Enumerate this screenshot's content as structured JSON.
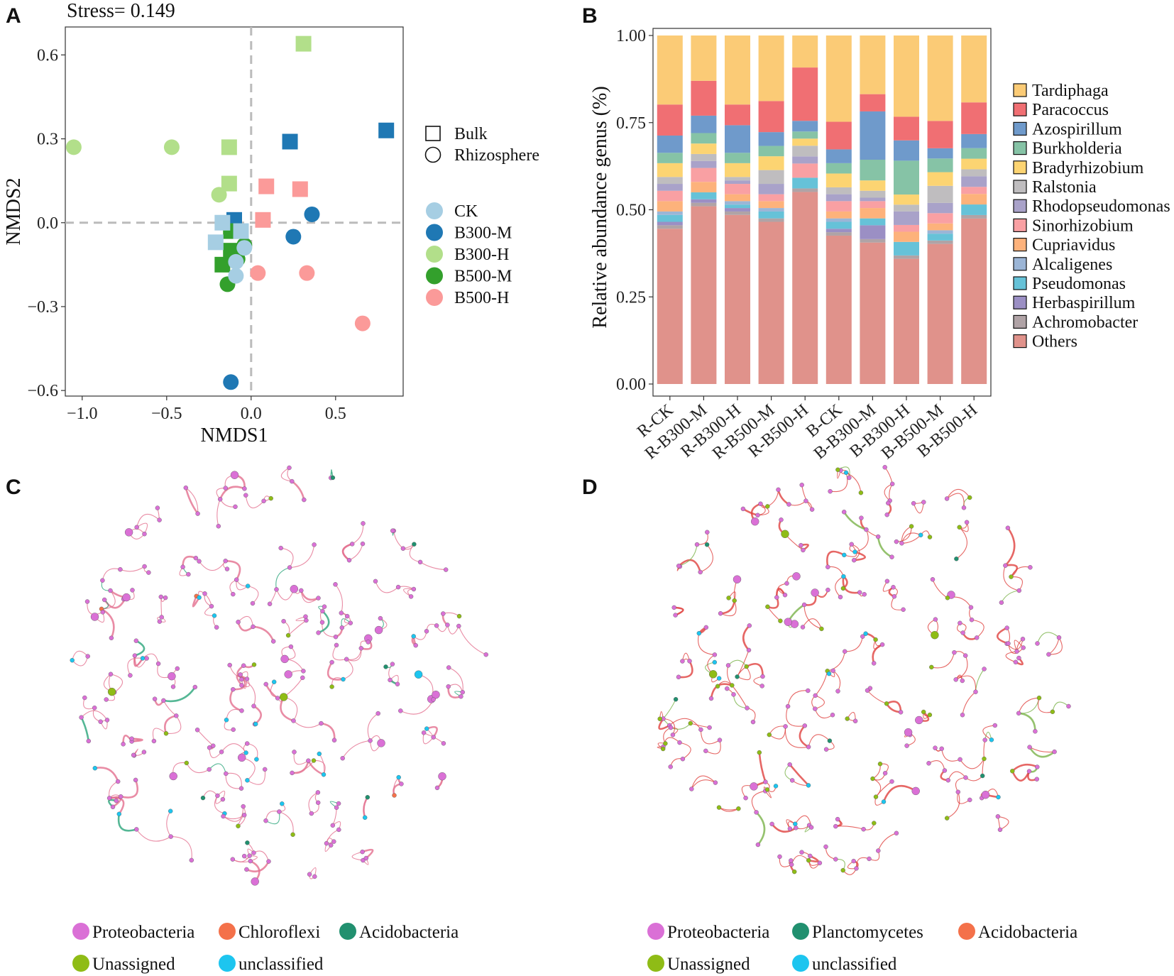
{
  "panels": {
    "a": "A",
    "b": "B",
    "c": "C",
    "d": "D"
  },
  "chart_data": [
    {
      "type": "scatter",
      "panel": "A",
      "title": "Stress= 0.149",
      "xlabel": "NMDS1",
      "ylabel": "NMDS2",
      "xlim": [
        -1.1,
        0.9
      ],
      "ylim": [
        -0.62,
        0.7
      ],
      "xticks": [
        -1.0,
        -0.5,
        0.0,
        0.5
      ],
      "xtick_labels": [
        "−1.0",
        "−0.5",
        "0.0",
        "0.5"
      ],
      "yticks": [
        0.6,
        0.3,
        0.0,
        -0.3,
        -0.6
      ],
      "ytick_labels": [
        "0.6",
        "0.3",
        "0.0",
        "−0.3",
        "−0.6"
      ],
      "shape_legend": [
        {
          "label": "Bulk",
          "shape": "square"
        },
        {
          "label": "Rhizosphere",
          "shape": "circle"
        }
      ],
      "groups": [
        {
          "name": "CK",
          "color": "#a6cee3"
        },
        {
          "name": "B300-M",
          "color": "#1f78b4"
        },
        {
          "name": "B300-H",
          "color": "#b2df8a"
        },
        {
          "name": "B500-M",
          "color": "#33a02c"
        },
        {
          "name": "B500-H",
          "color": "#fb9a99"
        }
      ],
      "points": [
        {
          "group": "B300-H",
          "shape": "square",
          "x": 0.31,
          "y": 0.64
        },
        {
          "group": "B300-H",
          "shape": "square",
          "x": -0.13,
          "y": 0.27
        },
        {
          "group": "B300-H",
          "shape": "square",
          "x": -0.13,
          "y": 0.14
        },
        {
          "group": "B300-H",
          "shape": "circle",
          "x": -1.05,
          "y": 0.27
        },
        {
          "group": "B300-H",
          "shape": "circle",
          "x": -0.47,
          "y": 0.27
        },
        {
          "group": "B300-H",
          "shape": "circle",
          "x": -0.19,
          "y": 0.1
        },
        {
          "group": "B300-M",
          "shape": "square",
          "x": 0.23,
          "y": 0.29
        },
        {
          "group": "B300-M",
          "shape": "square",
          "x": 0.8,
          "y": 0.33
        },
        {
          "group": "B300-M",
          "shape": "square",
          "x": -0.1,
          "y": 0.01
        },
        {
          "group": "B300-M",
          "shape": "circle",
          "x": 0.36,
          "y": 0.03
        },
        {
          "group": "B300-M",
          "shape": "circle",
          "x": 0.25,
          "y": -0.05
        },
        {
          "group": "B300-M",
          "shape": "circle",
          "x": -0.12,
          "y": -0.57
        },
        {
          "group": "B500-H",
          "shape": "square",
          "x": 0.09,
          "y": 0.13
        },
        {
          "group": "B500-H",
          "shape": "square",
          "x": 0.29,
          "y": 0.12
        },
        {
          "group": "B500-H",
          "shape": "square",
          "x": 0.07,
          "y": 0.01
        },
        {
          "group": "B500-H",
          "shape": "circle",
          "x": 0.04,
          "y": -0.18
        },
        {
          "group": "B500-H",
          "shape": "circle",
          "x": 0.33,
          "y": -0.18
        },
        {
          "group": "B500-H",
          "shape": "circle",
          "x": 0.66,
          "y": -0.36
        },
        {
          "group": "B500-M",
          "shape": "square",
          "x": -0.12,
          "y": -0.03
        },
        {
          "group": "B500-M",
          "shape": "square",
          "x": -0.12,
          "y": -0.1
        },
        {
          "group": "B500-M",
          "shape": "square",
          "x": -0.17,
          "y": -0.15
        },
        {
          "group": "B500-M",
          "shape": "circle",
          "x": -0.14,
          "y": -0.22
        },
        {
          "group": "B500-M",
          "shape": "circle",
          "x": -0.04,
          "y": -0.08
        },
        {
          "group": "B500-M",
          "shape": "circle",
          "x": -0.08,
          "y": -0.13
        },
        {
          "group": "CK",
          "shape": "square",
          "x": -0.17,
          "y": 0.0
        },
        {
          "group": "CK",
          "shape": "square",
          "x": -0.21,
          "y": -0.07
        },
        {
          "group": "CK",
          "shape": "square",
          "x": -0.06,
          "y": -0.03
        },
        {
          "group": "CK",
          "shape": "circle",
          "x": -0.04,
          "y": -0.09
        },
        {
          "group": "CK",
          "shape": "circle",
          "x": -0.09,
          "y": -0.14
        },
        {
          "group": "CK",
          "shape": "circle",
          "x": -0.09,
          "y": -0.19
        }
      ]
    },
    {
      "type": "bar",
      "stacked": true,
      "panel": "B",
      "ylabel": "Relative abundance genus (%)",
      "ylim": [
        0,
        1
      ],
      "yticks": [
        0.0,
        0.25,
        0.5,
        0.75,
        1.0
      ],
      "ytick_labels": [
        "0.00",
        "0.25",
        "0.50",
        "0.75",
        "1.00"
      ],
      "categories": [
        "R-CK",
        "R-B300-M",
        "R-B300-H",
        "R-B500-M",
        "R-B500-H",
        "B-CK",
        "B-B300-M",
        "B-B300-H",
        "B-B500-M",
        "B-B500-H"
      ],
      "series": [
        {
          "name": "Others",
          "color": "#e0928b",
          "values": [
            0.45,
            0.51,
            0.49,
            0.47,
            0.54,
            0.43,
            0.41,
            0.37,
            0.41,
            0.47
          ]
        },
        {
          "name": "Achromobacter",
          "color": "#b0a3a6",
          "values": [
            0.01,
            0.01,
            0.01,
            0.01,
            0.01,
            0.01,
            0.01,
            0.01,
            0.01,
            0.01
          ]
        },
        {
          "name": "Herbaspirillum",
          "color": "#9b8fc4",
          "values": [
            0.01,
            0.01,
            0.01,
            0.0,
            0.0,
            0.01,
            0.04,
            0.0,
            0.0,
            0.0
          ]
        },
        {
          "name": "Pseudomonas",
          "color": "#66c2d8",
          "values": [
            0.02,
            0.02,
            0.01,
            0.02,
            0.03,
            0.02,
            0.02,
            0.04,
            0.02,
            0.03
          ]
        },
        {
          "name": "Alcaligenes",
          "color": "#9bb5d6",
          "values": [
            0.01,
            0.0,
            0.01,
            0.01,
            0.0,
            0.01,
            0.0,
            0.0,
            0.01,
            0.0
          ]
        },
        {
          "name": "Cupriavidus",
          "color": "#fdb27b",
          "values": [
            0.03,
            0.03,
            0.02,
            0.02,
            0.0,
            0.02,
            0.03,
            0.03,
            0.02,
            0.03
          ]
        },
        {
          "name": "Sinorhizobium",
          "color": "#f9a0a3",
          "values": [
            0.03,
            0.04,
            0.03,
            0.02,
            0.04,
            0.03,
            0.02,
            0.02,
            0.03,
            0.02
          ]
        },
        {
          "name": "Rhodopseudomonas",
          "color": "#a9a2c9",
          "values": [
            0.02,
            0.02,
            0.01,
            0.03,
            0.02,
            0.02,
            0.01,
            0.04,
            0.03,
            0.03
          ]
        },
        {
          "name": "Ralstonia",
          "color": "#bfbdbf",
          "values": [
            0.02,
            0.02,
            0.01,
            0.04,
            0.03,
            0.02,
            0.02,
            0.02,
            0.05,
            0.02
          ]
        },
        {
          "name": "Bradyrhizobium",
          "color": "#fcd472",
          "values": [
            0.04,
            0.03,
            0.04,
            0.04,
            0.02,
            0.04,
            0.03,
            0.03,
            0.04,
            0.03
          ]
        },
        {
          "name": "Burkholderia",
          "color": "#86c3a6",
          "values": [
            0.03,
            0.03,
            0.03,
            0.03,
            0.02,
            0.03,
            0.06,
            0.1,
            0.04,
            0.03
          ]
        },
        {
          "name": "Azospirillum",
          "color": "#6f9acb",
          "values": [
            0.05,
            0.05,
            0.08,
            0.04,
            0.03,
            0.04,
            0.14,
            0.06,
            0.03,
            0.04
          ]
        },
        {
          "name": "Paracoccus",
          "color": "#f06f73",
          "values": [
            0.09,
            0.1,
            0.06,
            0.09,
            0.15,
            0.08,
            0.05,
            0.07,
            0.08,
            0.09
          ]
        },
        {
          "name": "Tardiphaga",
          "color": "#fbcb76",
          "values": [
            0.2,
            0.13,
            0.2,
            0.19,
            0.09,
            0.25,
            0.17,
            0.24,
            0.25,
            0.19
          ]
        }
      ],
      "legend_order": [
        "Tardiphaga",
        "Paracoccus",
        "Azospirillum",
        "Burkholderia",
        "Bradyrhizobium",
        "Ralstonia",
        "Rhodopseudomonas",
        "Sinorhizobium",
        "Cupriavidus",
        "Alcaligenes",
        "Pseudomonas",
        "Herbaspirillum",
        "Achromobacter",
        "Others"
      ]
    }
  ],
  "networks": {
    "C": {
      "legend": [
        {
          "label": "Proteobacteria",
          "color": "#da70d6"
        },
        {
          "label": "Chloroflexi",
          "color": "#f4714a"
        },
        {
          "label": "Acidobacteria",
          "color": "#21906f"
        },
        {
          "label": "Unassigned",
          "color": "#8fbc16"
        },
        {
          "label": "unclassified",
          "color": "#1dc5ef"
        }
      ]
    },
    "D": {
      "legend": [
        {
          "label": "Proteobacteria",
          "color": "#da70d6"
        },
        {
          "label": "Planctomycetes",
          "color": "#21906f"
        },
        {
          "label": "Acidobacteria",
          "color": "#f4714a"
        },
        {
          "label": "Unassigned",
          "color": "#8fbc16"
        },
        {
          "label": "unclassified",
          "color": "#1dc5ef"
        }
      ]
    }
  }
}
